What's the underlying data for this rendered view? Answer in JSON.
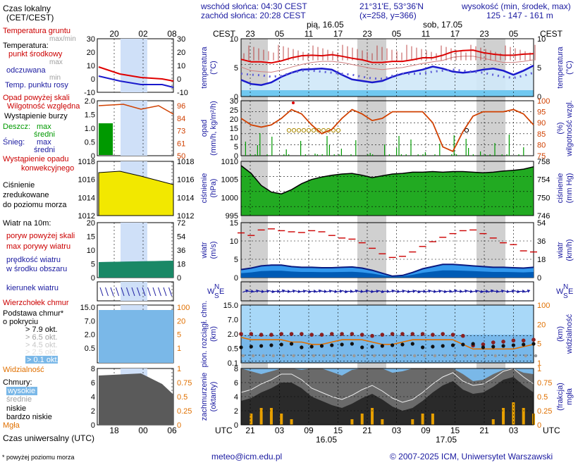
{
  "header": {
    "sunrise": "wschód słońca: 04:30 CEST",
    "sunset": "zachód słońca: 20:28 CEST",
    "coords": "21°31'E, 53°36'N",
    "grid": "(x=258, y=366)",
    "elevation_title": "wysokość (min, środek, max)",
    "elevation_values": "125 - 147 - 161 m",
    "day1_label": "pią, 16.05",
    "day2_label": "sob, 17.05",
    "bottom_day1": "16.05",
    "bottom_day2": "17.05"
  },
  "axis": {
    "top_tz": "CEST",
    "bottom_tz": "UTC",
    "top_hours": [
      "23",
      "05",
      "11",
      "17",
      "23",
      "05",
      "11",
      "17",
      "23",
      "05"
    ],
    "bottom_hours": [
      "21",
      "03",
      "09",
      "15",
      "21",
      "03",
      "09",
      "15",
      "21",
      "03"
    ],
    "legend_top_hours": [
      "20",
      "02",
      "08"
    ],
    "legend_bottom_hours": [
      "18",
      "00",
      "06"
    ]
  },
  "legend": {
    "local_time": "Czas lokalny",
    "local_time_sub": "(CET/CEST)",
    "ground_temp": "Temperatura gruntu",
    "ground_temp_sub": "max/min",
    "temperature": "Temperatura:",
    "mid_point": "punkt środkowy",
    "max": "max",
    "mean": "odczuwana",
    "min": "min",
    "dewpoint": "Temp. punktu rosy",
    "rain_above": "Opad powyżej skali",
    "humidity": "Wilgotność względna",
    "storm": "Wystąpienie burzy",
    "rain": "Deszcz:",
    "snow": "Śnieg:",
    "r_max": "max",
    "r_mean": "średni",
    "s_max": "max",
    "s_mean": "średni",
    "conv": "Wystąpienie opadu",
    "conv2": "konwekcyjnego",
    "pressure1": "Ciśnienie",
    "pressure2": "zredukowane",
    "pressure3": "do poziomu morza",
    "wind_title": "Wiatr na 10m:",
    "gust_above": "poryw powyżej skali",
    "gust_max": "max porywy wiatru",
    "wind_mean1": "prędkość wiatru",
    "wind_mean2": "w środku obszaru",
    "wind_dir": "kierunek wiatru",
    "cloud_top": "Wierzchołek chmur",
    "cloud_base1": "Podstawa chmur*",
    "cloud_base2": "o pokryciu",
    "okt1": "> 7.9 okt.",
    "okt2": "> 6.5 okt.",
    "okt3": "> 4.5 okt.",
    "okt4": "> 2.5 okt.",
    "okt5": "> 0.1 okt.",
    "visibility": "Widzialność",
    "clouds": "Chmury:",
    "cl_high": "wysokie",
    "cl_mid": "średnie",
    "cl_low": "niskie",
    "cl_vlow": "bardzo niskie",
    "fog": "Mgła",
    "utc_label": "Czas uniwersalny (UTC)",
    "footnote": "* powyżej poziomu morza"
  },
  "panel_labels": {
    "temp_l": "temperatura",
    "temp_l2": "(°C)",
    "temp_r": "temperatura",
    "temp_r2": "(°C)",
    "rain_l": "opad",
    "rain_l2": "(mm/h, kg/m²/h)",
    "rain_r": "wilgotność wzgl.",
    "rain_r2": "(%)",
    "pres_l": "ciśnienie",
    "pres_l2": "(hPa)",
    "pres_r": "ciśnienie",
    "pres_r2": "(mm Hg)",
    "wind_l": "wiatr",
    "wind_l2": "(m/s)",
    "wind_r": "wiatr",
    "wind_r2": "(km/h)",
    "dir_w": "W",
    "dir_s": "S",
    "dir_n": "N",
    "dir_e": "E",
    "cb_l": "pion. rozciągł. chm.",
    "cb_l2": "(km)",
    "cb_r": "widzialność",
    "cb_r2": "(km)",
    "cl_l": "zachmurzenie",
    "cl_l2": "(oktanty)",
    "cl_r": "mgła",
    "cl_r2": "(frakcja)"
  },
  "footer": {
    "email": "meteo@icm.edu.pl",
    "copyright": "© 2007-2025 ICM, Uniwersytet Warszawski"
  },
  "colors": {
    "temp": "#e00000",
    "dew": "#1a1acc",
    "rain": "#009900",
    "humidity": "#d04000",
    "pressure_fill": "#22aa22",
    "wind_fill": "#0066cc",
    "gust": "#cc0000",
    "band": "#d0d0d0",
    "orange": "#e07000"
  },
  "chart_data": [
    {
      "type": "line",
      "title": "temperatura",
      "ylim": [
        0,
        10
      ],
      "y_ticks": [
        "10",
        "5",
        "0"
      ],
      "right_ticks": [
        "10",
        "5",
        "0"
      ],
      "series": [
        {
          "name": "max",
          "values": [
            6.0,
            5.5,
            5.5,
            5.3,
            5.7,
            6.3,
            6.7,
            6.8,
            6.7,
            6.9,
            6.6,
            6.2,
            5.9,
            5.4,
            5.4,
            5.6,
            5.6,
            5.9,
            6.3,
            6.3,
            6.8,
            7.5,
            7.7,
            7.8,
            7.3,
            7.0,
            6.8,
            6.8,
            7.0,
            7.1
          ]
        },
        {
          "name": "odczuwana",
          "values": [
            4.5,
            3.8,
            3.6,
            3.5,
            3.9,
            4.5,
            5.0,
            5.4,
            5.6,
            5.6,
            5.4,
            5.0,
            4.6,
            4.2,
            4.0,
            4.2,
            4.4,
            4.8,
            5.2,
            5.5,
            5.8,
            6.4,
            6.6,
            6.6,
            6.2,
            5.8,
            5.4,
            5.4,
            5.6,
            5.9
          ]
        },
        {
          "name": "min",
          "values": [
            2.0,
            1.2,
            1.0,
            1.5,
            2.6,
            3.4,
            4.0,
            4.1,
            4.2,
            4.0,
            3.0,
            2.1,
            1.8,
            1.5,
            1.8,
            2.6,
            3.2,
            3.6,
            4.0,
            4.6,
            4.2,
            3.6,
            3.4,
            3.6,
            4.0,
            4.2,
            3.8,
            3.0,
            3.8,
            4.8
          ]
        },
        {
          "name": "Temp. punktu rosy",
          "values": [
            3.2,
            3.0,
            2.9,
            2.6,
            2.8,
            3.4,
            3.8,
            3.8,
            3.6,
            3.4,
            3.2,
            3.0,
            2.6,
            2.3,
            2.2,
            2.8,
            3.2,
            3.2,
            3.2,
            3.6,
            3.8,
            4.0,
            3.8,
            3.6,
            3.4,
            3.0,
            2.6,
            2.4,
            2.8,
            3.4
          ]
        }
      ]
    },
    {
      "type": "bar",
      "title": "opad",
      "ylim": [
        0,
        30
      ],
      "y_ticks": [
        "30",
        "25",
        "20",
        "15",
        "10",
        "5",
        "0"
      ],
      "right_ticks": [
        "100",
        "95",
        "90",
        "85",
        "80",
        "75"
      ],
      "series": [
        {
          "name": "Wilgotność względna",
          "values": [
            92,
            89,
            88,
            89,
            92,
            96,
            94,
            89,
            85,
            87,
            92,
            96,
            94,
            91,
            92,
            95,
            95,
            95,
            95,
            90,
            79,
            77,
            86,
            93,
            95,
            95,
            95,
            96,
            94,
            89
          ]
        }
      ]
    },
    {
      "type": "area",
      "title": "ciśnienie",
      "ylim": [
        992,
        1010
      ],
      "y_ticks": [
        "1010",
        "1005",
        "1000",
        "995"
      ],
      "right_ticks": [
        "758",
        "754",
        "750",
        "746"
      ],
      "series": [
        {
          "name": "Ciśnienie",
          "values": [
            1008.6,
            1006.0,
            1002.0,
            999.8,
            999.2,
            1000.6,
            1002.6,
            1004.0,
            1004.8,
            1005.4,
            1005.8,
            1006.0,
            1005.4,
            1004.6,
            1005.2,
            1005.8,
            1006.0,
            1006.4,
            1006.4,
            1006.6,
            1006.4,
            1006.6,
            1006.6,
            1006.4,
            1006.2,
            1006.4,
            1006.8,
            1007.0,
            1007.4,
            1008.2
          ]
        }
      ]
    },
    {
      "type": "area",
      "title": "wiatr",
      "ylim": [
        0,
        15
      ],
      "y_ticks": [
        "15",
        "10",
        "5",
        "0"
      ],
      "right_ticks": [
        "54",
        "36",
        "18",
        "0"
      ],
      "series": [
        {
          "name": "max porywy wiatru",
          "values": [
            12.2,
            11.5,
            13.0,
            13.3,
            12.8,
            12.5,
            12.3,
            12.8,
            12.5,
            11.5,
            10.8,
            10.5,
            9.5,
            8.0,
            6.5,
            5.5,
            5.8,
            7.0,
            8.5,
            9.8,
            11.0,
            12.0,
            12.8,
            13.0,
            12.0,
            10.8,
            9.5,
            9.0,
            7.3,
            7.0
          ]
        },
        {
          "name": "prędkość wiatru",
          "values": [
            2.2,
            2.6,
            3.2,
            3.4,
            3.4,
            3.0,
            2.8,
            2.8,
            2.7,
            2.7,
            2.8,
            2.9,
            2.6,
            2.0,
            1.2,
            0.4,
            0.6,
            1.4,
            2.4,
            3.0,
            3.6,
            3.6,
            3.4,
            3.2,
            3.0,
            2.8,
            2.8,
            2.7,
            2.6,
            2.8
          ]
        }
      ]
    },
    {
      "type": "line",
      "title": "pion. rozciągł. chm.",
      "ylim": [
        0,
        15
      ],
      "y_ticks": [
        "15.0",
        "7.0",
        "2.0",
        "0.5",
        "0.1"
      ],
      "right_ticks": [
        "100",
        "20",
        "5",
        "1"
      ],
      "series": [
        {
          "name": "Wierzchołek chmur",
          "values": [
            7.5,
            7.5,
            7.3,
            7.3,
            7.5,
            7.5,
            7.5,
            7.3,
            7.3,
            7.5,
            7.5,
            7.5,
            7.3,
            7.0,
            7.3,
            7.5,
            7.5,
            7.5,
            7.5,
            7.3,
            7.5,
            7.3,
            7.0,
            4.5,
            4.8,
            5.3,
            5.5,
            5.8,
            5.8,
            6.0
          ]
        },
        {
          "name": "Widzialność",
          "values": [
            11,
            10,
            10,
            10,
            10,
            9,
            9,
            8,
            8,
            9,
            10,
            10,
            10,
            9,
            8,
            8,
            9,
            10,
            10,
            10,
            10,
            10,
            8,
            6,
            6,
            6,
            6,
            6,
            7,
            8
          ]
        }
      ]
    },
    {
      "type": "area",
      "title": "zachmurzenie",
      "ylim": [
        0,
        8
      ],
      "y_ticks": [
        "8",
        "6",
        "4",
        "2",
        "0"
      ],
      "right_ticks": [
        "1",
        "0.75",
        "0.5",
        "0.25",
        "0"
      ],
      "series": [
        {
          "name": "wysokie",
          "values": [
            8,
            7.6,
            7.2,
            7.6,
            8,
            8,
            7.8,
            8,
            8,
            7.5,
            7,
            7.8,
            8,
            8,
            8,
            7.4,
            7.6,
            8,
            8,
            8,
            8,
            8,
            7.2,
            6.2,
            6.4,
            7.2,
            7.8,
            8,
            7.4,
            7.2
          ]
        },
        {
          "name": "niskie",
          "values": [
            3.4,
            3.8,
            4.6,
            5.2,
            6.0,
            6.0,
            5.2,
            4.0,
            3.4,
            2.8,
            2.4,
            3.0,
            3.8,
            4.4,
            3.6,
            2.6,
            2.0,
            2.4,
            3.4,
            4.6,
            5.6,
            6.2,
            5.0,
            4.4,
            4.6,
            5.4,
            6.4,
            6.8,
            5.6,
            4.6
          ]
        },
        {
          "name": "Mgła",
          "values": [
            0.0,
            0.2,
            0.3,
            0.3,
            0.2,
            0.1,
            0.0,
            0.0,
            0.0,
            0.0,
            0.0,
            0.1,
            0.2,
            0.3,
            0.1,
            0.0,
            0.0,
            0.1,
            0.2,
            0.2,
            0.0,
            0.0,
            0.0,
            0.0,
            0.0,
            0.1,
            0.3,
            0.4,
            0.3,
            0.2
          ]
        }
      ]
    }
  ]
}
